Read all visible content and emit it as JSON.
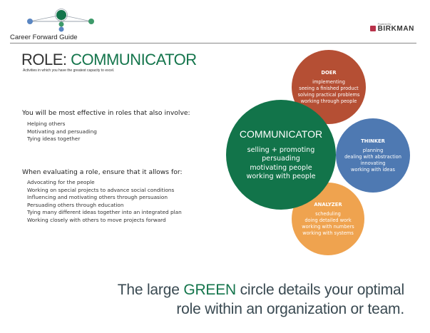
{
  "header": {
    "guide_title": "Career Forward Guide",
    "logo_powered": "Powered By",
    "logo_name": "BIRKMAN"
  },
  "role": {
    "prefix": "ROLE: ",
    "name": "COMMUNICATOR",
    "subtitle": "Activities in which you have the greatest capacity to excel."
  },
  "effective": {
    "heading": "You will be most effective in roles that also involve:",
    "items": [
      "Helping others",
      "Motivating and persuading",
      "Tying ideas together"
    ]
  },
  "evaluating": {
    "heading": "When evaluating a role, ensure that it allows for:",
    "items": [
      "Advocating for the people",
      "Working on special projects to advance social conditions",
      "Influencing and motivating others through persuasion",
      "Persuading others through education",
      "Tying many different ideas together into an integrated plan",
      "Working closely with others to move projects forward"
    ]
  },
  "circles": {
    "doer": {
      "title": "DOER",
      "items": [
        "implementing",
        "seeing a finished product",
        "solving practical problems",
        "working through people"
      ]
    },
    "thinker": {
      "title": "THINKER",
      "items": [
        "planning",
        "dealing with abstraction",
        "innovating",
        "working with ideas"
      ]
    },
    "analyzer": {
      "title": "ANALYZER",
      "items": [
        "scheduling",
        "doing detailed work",
        "working with numbers",
        "working with systems"
      ]
    },
    "communicator": {
      "title": "COMMUNICATOR",
      "items": [
        "selling + promoting",
        "persuading",
        "motivating people",
        "working with people"
      ]
    }
  },
  "footer": {
    "line1_a": "The large ",
    "line1_green": "GREEN",
    "line1_b": " circle details your optimal",
    "line2": "role within an organization or team."
  },
  "colors": {
    "green": "#12744a",
    "doer": "#b54f34",
    "thinker": "#4e79b2",
    "analyzer": "#efa34f"
  }
}
